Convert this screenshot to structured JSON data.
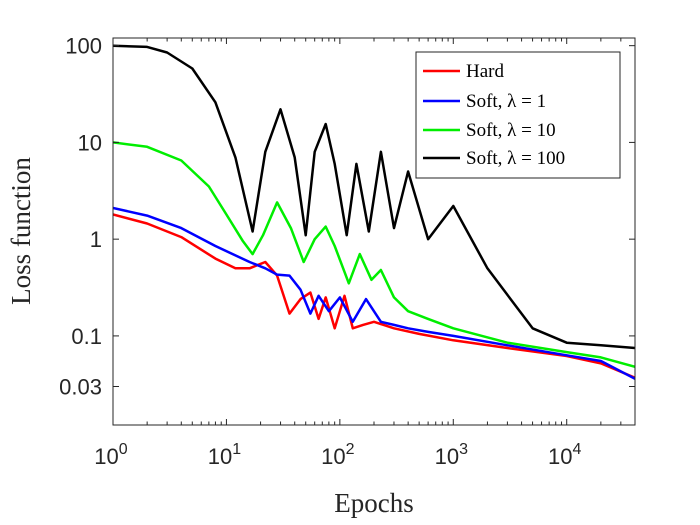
{
  "chart_data": {
    "type": "line",
    "title": "",
    "xlabel": "Epochs",
    "ylabel": "Loss function",
    "xscale": "log",
    "yscale": "log",
    "xlim": [
      1,
      40000
    ],
    "ylim": [
      0.012,
      120
    ],
    "grid": false,
    "legend_position": "top-right",
    "x_ticks": [
      {
        "value": 1,
        "base": "10",
        "exp": "0"
      },
      {
        "value": 10,
        "base": "10",
        "exp": "1"
      },
      {
        "value": 100,
        "base": "10",
        "exp": "2"
      },
      {
        "value": 1000,
        "base": "10",
        "exp": "3"
      },
      {
        "value": 10000,
        "base": "10",
        "exp": "4"
      }
    ],
    "y_ticks": [
      {
        "value": 100,
        "label": "100"
      },
      {
        "value": 10,
        "label": "10"
      },
      {
        "value": 1,
        "label": "1"
      },
      {
        "value": 0.1,
        "label": "0.1"
      },
      {
        "value": 0.03,
        "label": "0.03"
      }
    ],
    "series": [
      {
        "name": "Hard",
        "color": "#ff0000",
        "x": [
          1,
          2,
          4,
          8,
          12,
          16,
          22,
          28,
          36,
          45,
          55,
          65,
          75,
          90,
          110,
          130,
          160,
          200,
          300,
          500,
          1000,
          3000,
          10000,
          20000,
          40000
        ],
        "y": [
          1.8,
          1.45,
          1.05,
          0.63,
          0.5,
          0.5,
          0.58,
          0.42,
          0.17,
          0.24,
          0.28,
          0.15,
          0.25,
          0.12,
          0.26,
          0.12,
          0.13,
          0.14,
          0.12,
          0.105,
          0.09,
          0.075,
          0.062,
          0.052,
          0.037
        ]
      },
      {
        "name": "Soft, λ = 1",
        "color": "#0000ff",
        "x": [
          1,
          2,
          4,
          8,
          12,
          16,
          22,
          28,
          36,
          45,
          55,
          65,
          80,
          100,
          130,
          170,
          230,
          300,
          400,
          600,
          1000,
          3000,
          10000,
          20000,
          40000
        ],
        "y": [
          2.1,
          1.75,
          1.3,
          0.85,
          0.68,
          0.58,
          0.5,
          0.43,
          0.42,
          0.3,
          0.17,
          0.26,
          0.18,
          0.25,
          0.14,
          0.24,
          0.14,
          0.13,
          0.12,
          0.11,
          0.1,
          0.08,
          0.063,
          0.055,
          0.036
        ]
      },
      {
        "name": "Soft, λ = 10",
        "color": "#00ee00",
        "x": [
          1,
          2,
          4,
          7,
          10,
          14,
          17,
          21,
          28,
          37,
          48,
          60,
          75,
          90,
          120,
          150,
          190,
          230,
          300,
          400,
          600,
          1000,
          3000,
          10000,
          20000,
          40000
        ],
        "y": [
          10,
          9,
          6.5,
          3.5,
          1.8,
          0.95,
          0.7,
          1.1,
          2.4,
          1.3,
          0.58,
          1.0,
          1.35,
          0.85,
          0.35,
          0.7,
          0.38,
          0.48,
          0.25,
          0.18,
          0.15,
          0.12,
          0.085,
          0.068,
          0.06,
          0.048
        ]
      },
      {
        "name": "Soft, λ = 100",
        "color": "#000000",
        "x": [
          1,
          2,
          3,
          5,
          8,
          12,
          17,
          22,
          30,
          40,
          50,
          60,
          75,
          90,
          115,
          140,
          180,
          230,
          300,
          400,
          600,
          1000,
          2000,
          5000,
          10000,
          20000,
          40000
        ],
        "y": [
          100,
          97,
          85,
          58,
          26,
          7,
          1.2,
          8,
          22,
          7,
          1.1,
          8,
          15.5,
          6,
          1.1,
          6,
          1.2,
          8,
          1.3,
          5,
          1.0,
          2.2,
          0.5,
          0.12,
          0.085,
          0.08,
          0.075
        ]
      }
    ]
  }
}
